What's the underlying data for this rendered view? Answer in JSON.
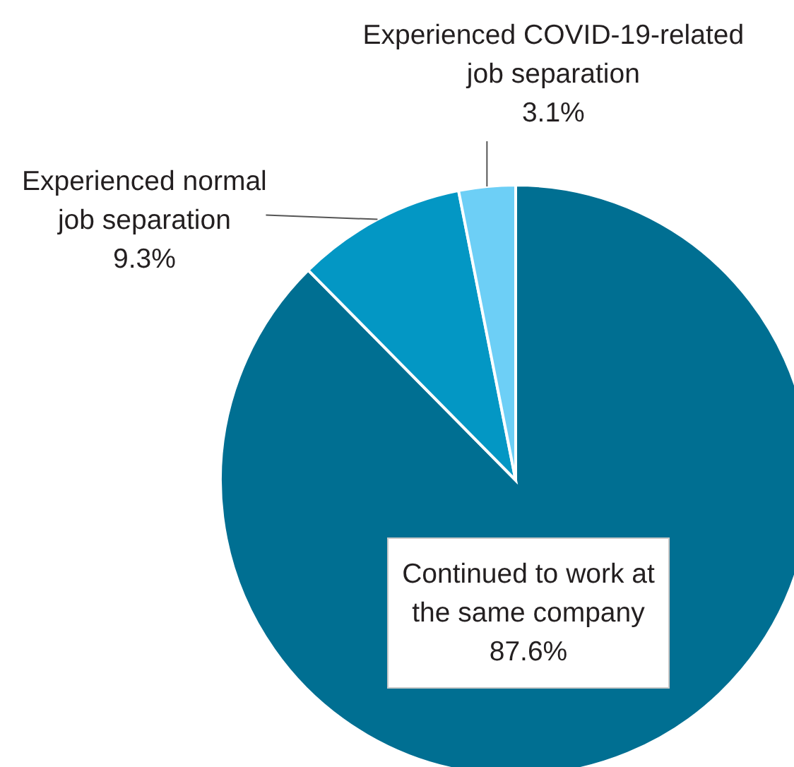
{
  "chart_data": {
    "type": "pie",
    "categories": [
      "Continued to work at the same company",
      "Experienced normal job separation",
      "Experienced COVID-19-related job separation"
    ],
    "values": [
      87.6,
      9.3,
      3.1
    ],
    "colors": [
      "#006f92",
      "#0397c4",
      "#6dcff6"
    ],
    "value_labels": [
      "87.6%",
      "9.3%",
      "3.1%"
    ]
  }
}
